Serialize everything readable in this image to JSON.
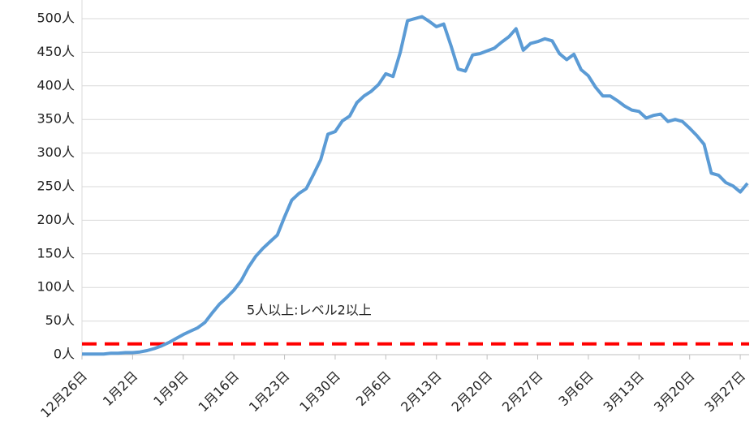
{
  "chart_data": {
    "type": "line",
    "categories": [
      "12月26日",
      null,
      null,
      null,
      null,
      null,
      null,
      "1月2日",
      null,
      null,
      null,
      null,
      null,
      null,
      "1月9日",
      null,
      null,
      null,
      null,
      null,
      null,
      "1月16日",
      null,
      null,
      null,
      null,
      null,
      null,
      "1月23日",
      null,
      null,
      null,
      null,
      null,
      null,
      "1月30日",
      null,
      null,
      null,
      null,
      null,
      null,
      "2月6日",
      null,
      null,
      null,
      null,
      null,
      null,
      "2月13日",
      null,
      null,
      null,
      null,
      null,
      null,
      "2月20日",
      null,
      null,
      null,
      null,
      null,
      null,
      "2月27日",
      null,
      null,
      null,
      null,
      null,
      null,
      "3月6日",
      null,
      null,
      null,
      null,
      null,
      null,
      "3月13日",
      null,
      null,
      null,
      null,
      null,
      null,
      "3月20日",
      null,
      null,
      null,
      null,
      null,
      null,
      "3月27日",
      null
    ],
    "values": [
      1,
      1,
      1,
      1,
      2,
      2,
      3,
      3,
      4,
      6,
      9,
      13,
      18,
      24,
      30,
      35,
      40,
      48,
      62,
      75,
      85,
      96,
      110,
      130,
      146,
      158,
      168,
      178,
      205,
      230,
      240,
      247,
      268,
      290,
      328,
      332,
      348,
      355,
      375,
      385,
      392,
      402,
      418,
      414,
      450,
      497,
      500,
      503,
      496,
      488,
      492,
      460,
      425,
      422,
      446,
      448,
      452,
      456,
      465,
      473,
      485,
      453,
      463,
      466,
      470,
      467,
      448,
      439,
      447,
      424,
      415,
      398,
      385,
      385,
      378,
      370,
      364,
      362,
      352,
      356,
      358,
      347,
      350,
      347,
      337,
      326,
      313,
      270,
      267,
      256,
      251,
      242,
      255
    ],
    "color": "#5b9bd5",
    "threshold": 16,
    "threshold_color": "#ff0000",
    "threshold_label": "5人以上:レベル2以上",
    "ylim": [
      0,
      500
    ],
    "yticks": [
      {
        "value": 0,
        "label": "0人"
      },
      {
        "value": 50,
        "label": "50人"
      },
      {
        "value": 100,
        "label": "100人"
      },
      {
        "value": 150,
        "label": "150人"
      },
      {
        "value": 200,
        "label": "200人"
      },
      {
        "value": 250,
        "label": "250人"
      },
      {
        "value": 300,
        "label": "300人"
      },
      {
        "value": 350,
        "label": "350人"
      },
      {
        "value": 400,
        "label": "400人"
      },
      {
        "value": 450,
        "label": "450人"
      },
      {
        "value": 500,
        "label": "500人"
      }
    ],
    "grid": true
  }
}
